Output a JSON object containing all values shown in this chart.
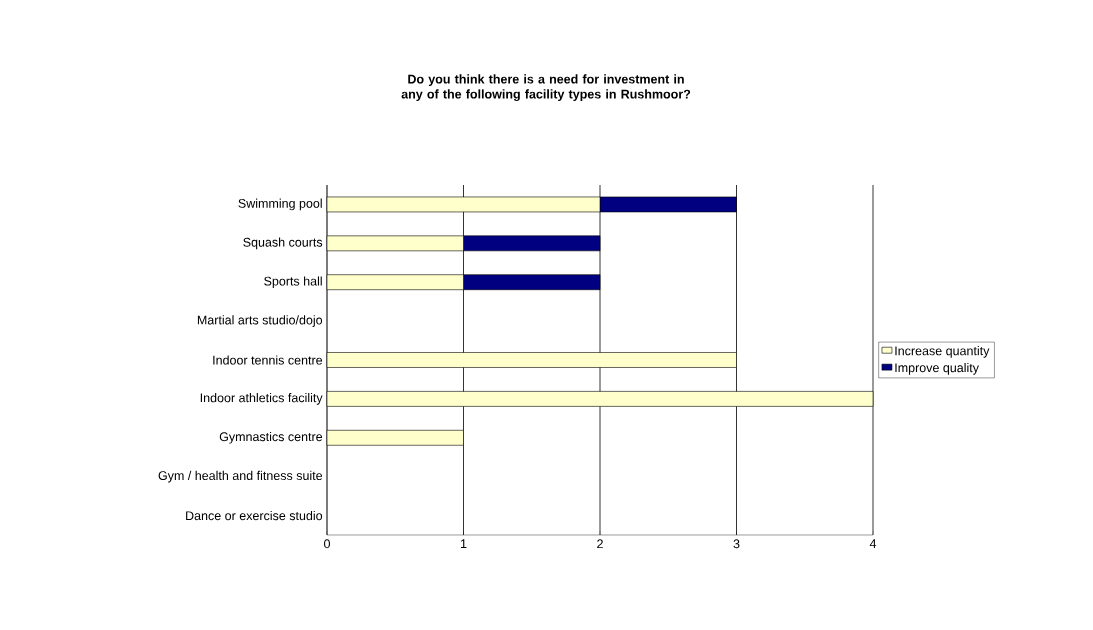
{
  "chart_data": {
    "type": "bar",
    "orientation": "horizontal",
    "stacked": true,
    "title": "Do you think there is a need for investment in any of the following facility types in Rushmoor?",
    "categories": [
      "Swimming pool",
      "Squash courts",
      "Sports hall",
      "Martial arts studio/dojo",
      "Indoor tennis centre",
      "Indoor athletics facility",
      "Gymnastics centre",
      "Gym / health and fitness suite",
      "Dance or exercise studio"
    ],
    "series": [
      {
        "name": "Increase quantity",
        "color": "#ffffcc",
        "values": [
          2,
          1,
          1,
          0,
          3,
          4,
          1,
          0,
          0
        ]
      },
      {
        "name": "Improve quality",
        "color": "#000080",
        "values": [
          1,
          1,
          1,
          0,
          0,
          0,
          0,
          0,
          0
        ]
      }
    ],
    "xlim": [
      0,
      4
    ],
    "xticks": [
      0,
      1,
      2,
      3,
      4
    ],
    "grid": "x",
    "legend": "right"
  }
}
